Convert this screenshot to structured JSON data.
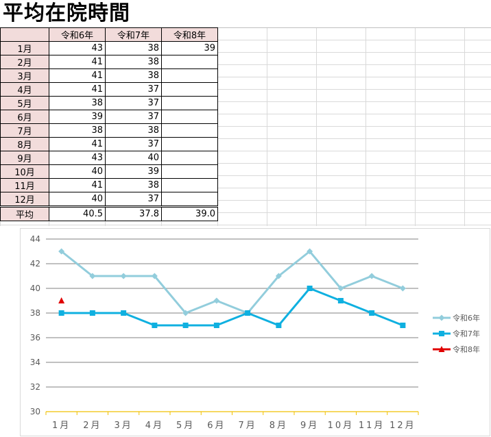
{
  "sheet": {
    "title": "平均在院時間",
    "headers": [
      "",
      "令和6年",
      "令和7年",
      "令和8年"
    ],
    "rows": [
      {
        "month": "1月",
        "r6": "43",
        "r7": "38",
        "r8": "39"
      },
      {
        "month": "2月",
        "r6": "41",
        "r7": "38",
        "r8": ""
      },
      {
        "month": "3月",
        "r6": "41",
        "r7": "38",
        "r8": ""
      },
      {
        "month": "4月",
        "r6": "41",
        "r7": "37",
        "r8": ""
      },
      {
        "month": "5月",
        "r6": "38",
        "r7": "37",
        "r8": ""
      },
      {
        "month": "6月",
        "r6": "39",
        "r7": "37",
        "r8": ""
      },
      {
        "month": "7月",
        "r6": "38",
        "r7": "38",
        "r8": ""
      },
      {
        "month": "8月",
        "r6": "41",
        "r7": "37",
        "r8": ""
      },
      {
        "month": "9月",
        "r6": "43",
        "r7": "40",
        "r8": ""
      },
      {
        "month": "10月",
        "r6": "40",
        "r7": "39",
        "r8": ""
      },
      {
        "month": "11月",
        "r6": "41",
        "r7": "38",
        "r8": ""
      },
      {
        "month": "12月",
        "r6": "40",
        "r7": "37",
        "r8": ""
      }
    ],
    "average": {
      "label": "平均",
      "r6": "40.5",
      "r7": "37.8",
      "r8": "39.0"
    }
  },
  "chart_data": {
    "type": "line",
    "categories": [
      "1月",
      "2月",
      "3月",
      "4月",
      "5月",
      "6月",
      "7月",
      "8月",
      "9月",
      "10月",
      "11月",
      "12月"
    ],
    "series": [
      {
        "name": "令和6年",
        "values": [
          43,
          41,
          41,
          41,
          38,
          39,
          38,
          41,
          43,
          40,
          41,
          40
        ],
        "color": "#92cddc",
        "marker": "diamond"
      },
      {
        "name": "令和7年",
        "values": [
          38,
          38,
          38,
          37,
          37,
          37,
          38,
          37,
          40,
          39,
          38,
          37
        ],
        "color": "#0fb0e0",
        "marker": "square"
      },
      {
        "name": "令和8年",
        "values": [
          39,
          null,
          null,
          null,
          null,
          null,
          null,
          null,
          null,
          null,
          null,
          null
        ],
        "color": "#e00000",
        "marker": "triangle"
      }
    ],
    "ylim": [
      30,
      44
    ],
    "yticks": [
      30,
      32,
      34,
      36,
      38,
      40,
      42,
      44
    ],
    "grid": true,
    "legend": "right",
    "axis_color": "#f0c000"
  }
}
